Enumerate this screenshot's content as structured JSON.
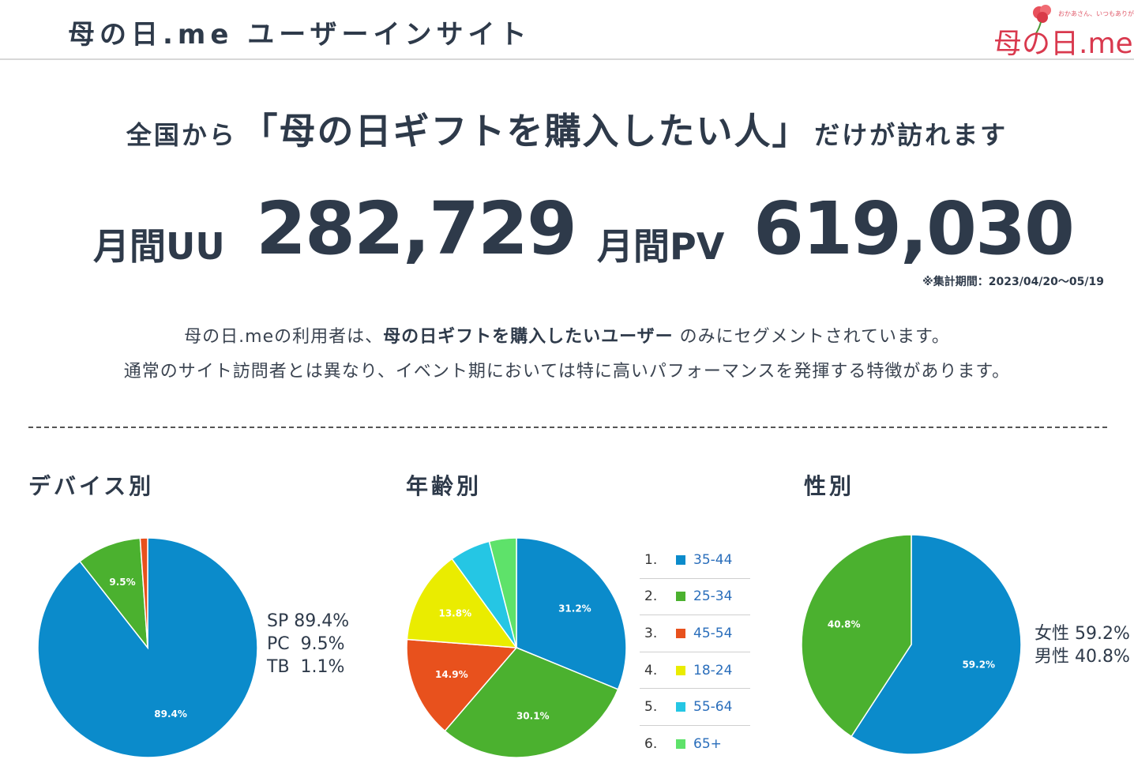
{
  "header": {
    "title": "母の日.me ユーザーインサイト",
    "logo_text": "母の日.me",
    "logo_tagline": "おかあさん、いつもありがとう"
  },
  "headline": {
    "pre": "全国から",
    "main": "「母の日ギフトを購入したい人」",
    "post": "だけが訪れます"
  },
  "stats": {
    "uu_label": "月間UU",
    "uu_value": "282,729",
    "pv_label": "月間PV",
    "pv_value": "619,030",
    "period": "※集計期間：2023/04/20〜05/19"
  },
  "description": {
    "line1_a": "母の日.meの利用者は、",
    "line1_b": "母の日ギフトを購入したいユーザー",
    "line1_c": " のみにセグメントされています。",
    "line2": "通常のサイト訪問者とは異なり、イベント期においては特に高いパフォーマンスを発揮する特徴があります。"
  },
  "sections": {
    "device": "デバイス別",
    "age": "年齢別",
    "gender": "性別"
  },
  "device_side": {
    "line1": "SP 89.4%",
    "line2": "PC  9.5%",
    "line3": "TB  1.1%"
  },
  "gender_side": {
    "line1": "女性 59.2%",
    "line2": "男性 40.8%"
  },
  "chart_data": [
    {
      "type": "pie",
      "title": "デバイス別",
      "categories": [
        "SP",
        "PC",
        "TB"
      ],
      "values": [
        89.4,
        9.5,
        1.1
      ],
      "labels": [
        "89.4%",
        "9.5%",
        ""
      ],
      "colors": [
        "#0b8bcb",
        "#4bb12f",
        "#e8511d"
      ]
    },
    {
      "type": "pie",
      "title": "年齢別",
      "categories": [
        "35-44",
        "25-34",
        "45-54",
        "18-24",
        "55-64",
        "65+"
      ],
      "values": [
        31.2,
        30.1,
        14.9,
        13.8,
        6.0,
        4.0
      ],
      "labels": [
        "31.2%",
        "30.1%",
        "14.9%",
        "13.8%",
        "",
        ""
      ],
      "colors": [
        "#0b8bcb",
        "#4bb12f",
        "#e8511d",
        "#eaec00",
        "#25c6e4",
        "#5ee26a"
      ],
      "legend": [
        {
          "index": "1.",
          "label": "35-44"
        },
        {
          "index": "2.",
          "label": "25-34"
        },
        {
          "index": "3.",
          "label": "45-54"
        },
        {
          "index": "4.",
          "label": "18-24"
        },
        {
          "index": "5.",
          "label": "55-64"
        },
        {
          "index": "6.",
          "label": "65+"
        }
      ],
      "legend_position": "right"
    },
    {
      "type": "pie",
      "title": "性別",
      "categories": [
        "女性",
        "男性"
      ],
      "values": [
        59.2,
        40.8
      ],
      "labels": [
        "59.2%",
        "40.8%"
      ],
      "colors": [
        "#0b8bcb",
        "#4bb12f"
      ]
    }
  ]
}
